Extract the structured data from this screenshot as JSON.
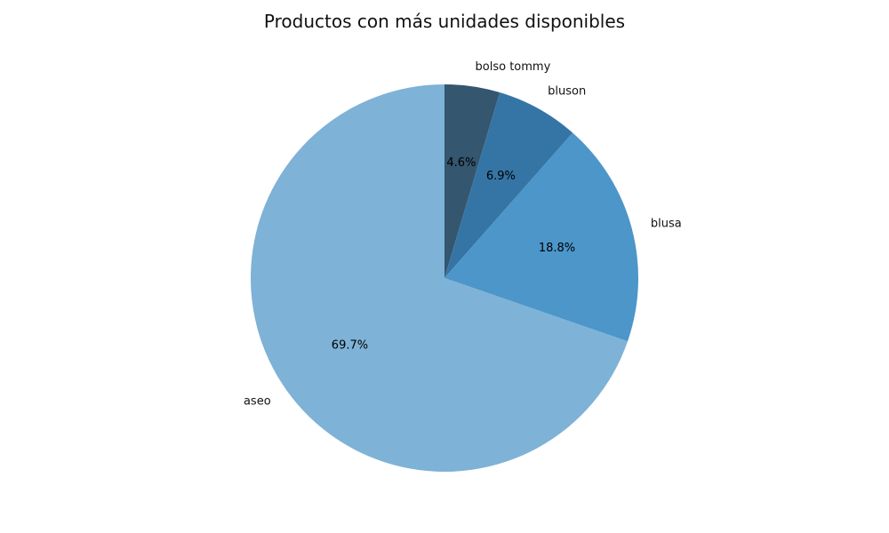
{
  "chart_data": {
    "type": "pie",
    "title": "Productos con más unidades disponibles",
    "start_angle_deg": 90,
    "direction": "clockwise",
    "slices": [
      {
        "label": "bolso tommy",
        "value": 4.6,
        "pct_label": "4.6%",
        "color": "#34566f"
      },
      {
        "label": "bluson",
        "value": 6.9,
        "pct_label": "6.9%",
        "color": "#3575a5"
      },
      {
        "label": "blusa",
        "value": 18.8,
        "pct_label": "18.8%",
        "color": "#4c96c9"
      },
      {
        "label": "aseo",
        "value": 69.7,
        "pct_label": "69.7%",
        "color": "#7eb2d7"
      }
    ]
  }
}
